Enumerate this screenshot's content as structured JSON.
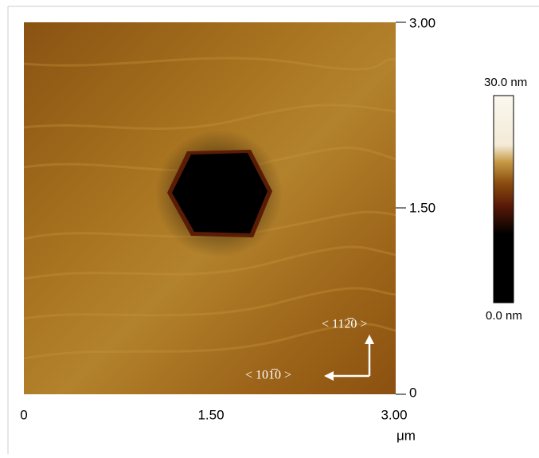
{
  "x_axis": {
    "ticks": [
      "0",
      "1.50",
      "3.00"
    ],
    "unit": "μm"
  },
  "y_axis": {
    "ticks": [
      "3.00",
      "1.50",
      "0"
    ]
  },
  "color_scale": {
    "max": "30.0 nm",
    "min": "0.0 nm"
  },
  "directions": {
    "vertical": "< 112̅0 >",
    "horizontal": "< 101̅0 >"
  }
}
